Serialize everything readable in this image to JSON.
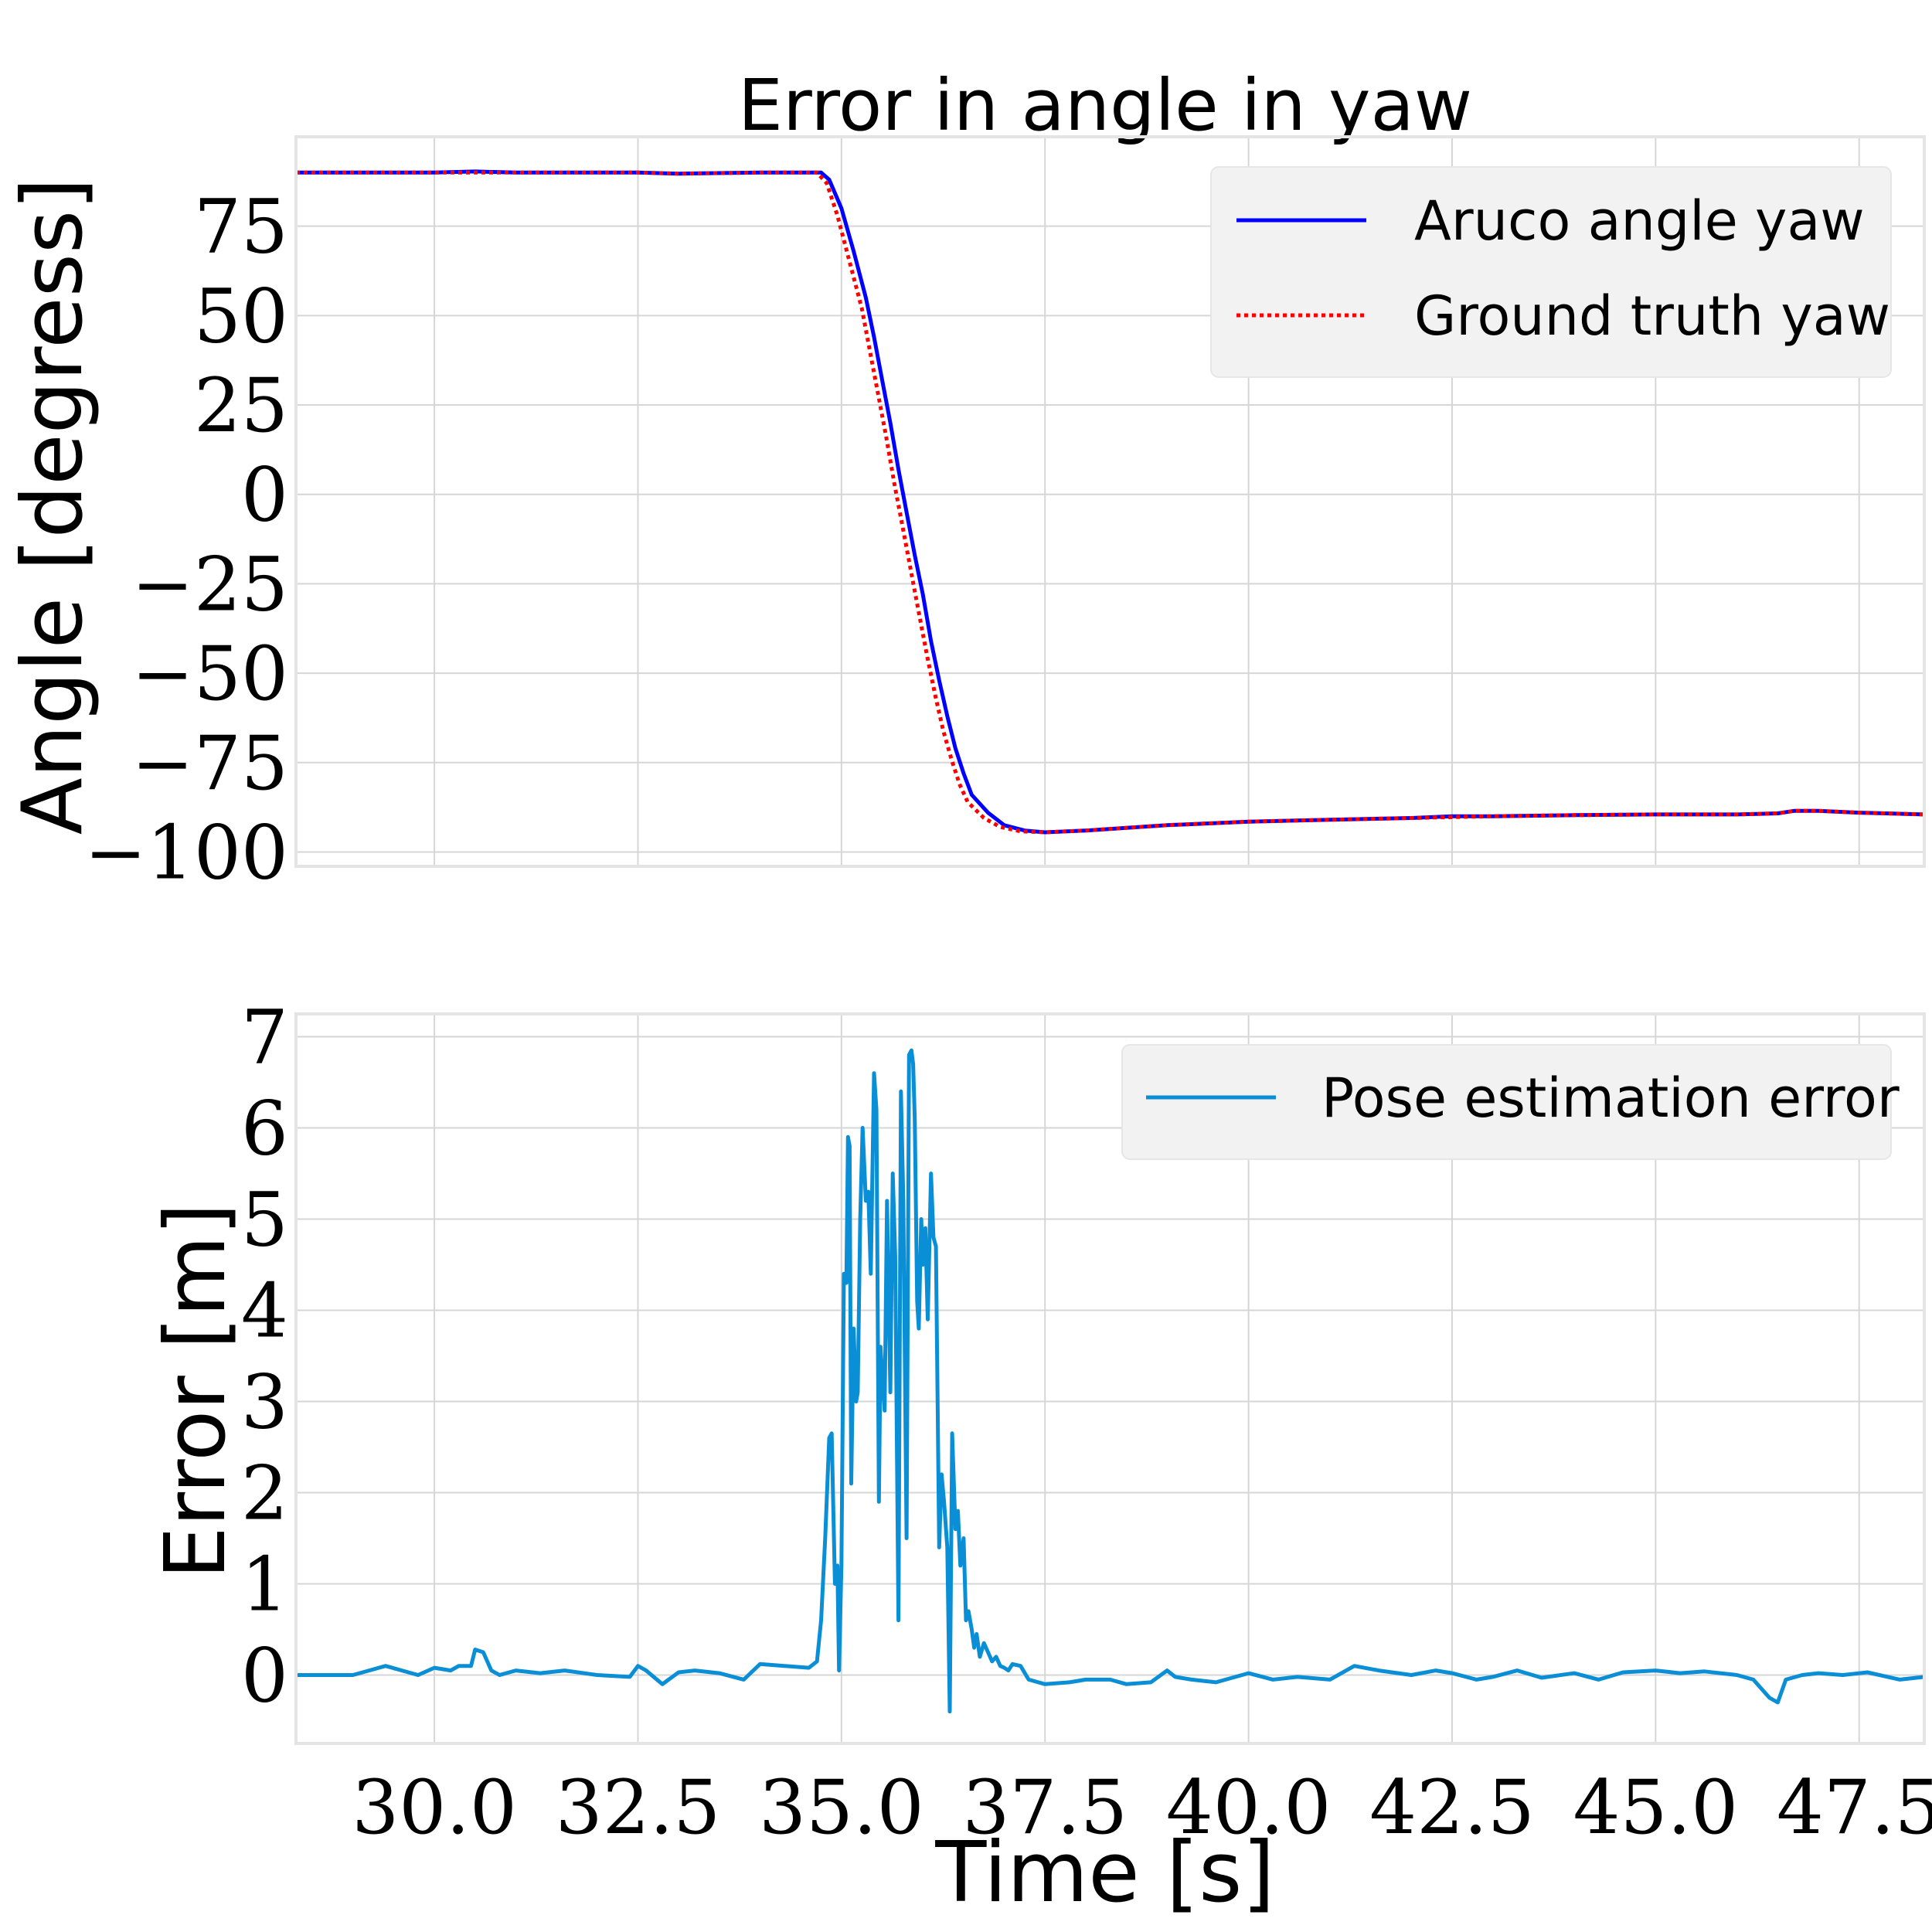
{
  "figure": {
    "title": "Error in angle in yaw",
    "xlabel": "Time [s]"
  },
  "chart_data": [
    {
      "type": "line",
      "title": "Error in angle in yaw",
      "xlabel": "",
      "ylabel": "Angle [degress]",
      "xlim": [
        28.3,
        48.3
      ],
      "ylim": [
        -104,
        100
      ],
      "xticks": [
        30.0,
        32.5,
        35.0,
        37.5,
        40.0,
        42.5,
        45.0,
        47.5
      ],
      "xtick_labels": [],
      "yticks": [
        75,
        50,
        25,
        0,
        -25,
        -50,
        -75,
        -100
      ],
      "ytick_labels": [
        "75",
        "50",
        "25",
        "0",
        "−25",
        "−50",
        "−75",
        "−100"
      ],
      "grid": true,
      "legend_position": "top-right",
      "series": [
        {
          "name": "Aruco angle yaw",
          "color": "#0000ff",
          "style": "solid",
          "x": [
            28.3,
            30.0,
            30.5,
            31.0,
            32.5,
            33.0,
            34.0,
            34.75,
            34.85,
            35.0,
            35.15,
            35.3,
            35.4,
            35.5,
            35.6,
            35.7,
            35.8,
            35.9,
            36.0,
            36.1,
            36.2,
            36.3,
            36.4,
            36.5,
            36.6,
            36.8,
            37.0,
            37.25,
            37.5,
            38.0,
            39.0,
            40.0,
            41.0,
            42.0,
            42.5,
            43.0,
            44.0,
            45.0,
            46.0,
            46.5,
            46.7,
            47.0,
            47.5,
            48.3
          ],
          "y": [
            90,
            90,
            90.3,
            90,
            90,
            89.7,
            90,
            90,
            88,
            80,
            68,
            55,
            44,
            32,
            20,
            7,
            -5,
            -17,
            -28,
            -41,
            -52,
            -62,
            -71,
            -78,
            -84,
            -89,
            -92.5,
            -94,
            -94.5,
            -94,
            -92.5,
            -91.5,
            -91,
            -90.5,
            -90,
            -90,
            -89.7,
            -89.5,
            -89.5,
            -89.2,
            -88.5,
            -88.5,
            -89,
            -89.5
          ]
        },
        {
          "name": "Ground truth yaw",
          "color": "#ff0000",
          "style": "dotted",
          "x": [
            28.3,
            30.0,
            31.0,
            32.5,
            33.0,
            34.0,
            34.7,
            34.82,
            34.95,
            35.1,
            35.25,
            35.35,
            35.45,
            35.55,
            35.65,
            35.75,
            35.85,
            35.95,
            36.05,
            36.15,
            36.25,
            36.35,
            36.45,
            36.55,
            36.75,
            36.95,
            37.2,
            37.5,
            38.0,
            39.0,
            40.0,
            41.0,
            42.0,
            43.0,
            44.0,
            45.0,
            46.0,
            46.5,
            46.7,
            47.0,
            47.5,
            48.3
          ],
          "y": [
            90,
            90,
            90,
            90,
            89.7,
            90,
            90,
            87,
            78,
            65,
            52,
            40,
            28,
            16,
            3,
            -9,
            -21,
            -33,
            -45,
            -56,
            -66,
            -74,
            -81,
            -86,
            -90.5,
            -93,
            -94.2,
            -94.5,
            -94,
            -92.5,
            -91.5,
            -91,
            -90.5,
            -90,
            -89.7,
            -89.5,
            -89.5,
            -89.2,
            -88.5,
            -88.5,
            -89,
            -89.5
          ]
        }
      ]
    },
    {
      "type": "line",
      "title": "",
      "xlabel": "Time [s]",
      "ylabel": "Error [m]",
      "xlim": [
        28.3,
        48.3
      ],
      "ylim": [
        -0.75,
        7.25
      ],
      "xticks": [
        30.0,
        32.5,
        35.0,
        37.5,
        40.0,
        42.5,
        45.0,
        47.5
      ],
      "xtick_labels": [
        "30.0",
        "32.5",
        "35.0",
        "37.5",
        "40.0",
        "42.5",
        "45.0",
        "47.5"
      ],
      "yticks": [
        0,
        1,
        2,
        3,
        4,
        5,
        6,
        7
      ],
      "ytick_labels": [
        "0",
        "1",
        "2",
        "3",
        "4",
        "5",
        "6",
        "7"
      ],
      "grid": true,
      "legend_position": "top-right",
      "series": [
        {
          "name": "Pose estimation error",
          "color": "#0a8fd6",
          "style": "solid",
          "x": [
            28.3,
            28.6,
            29.0,
            29.2,
            29.4,
            29.6,
            29.8,
            30.0,
            30.2,
            30.3,
            30.45,
            30.5,
            30.6,
            30.7,
            30.8,
            31.0,
            31.3,
            31.6,
            32.0,
            32.4,
            32.5,
            32.6,
            32.8,
            33.0,
            33.2,
            33.5,
            33.8,
            34.0,
            34.3,
            34.6,
            34.7,
            34.75,
            34.8,
            34.85,
            34.88,
            34.92,
            34.95,
            34.97,
            35.0,
            35.03,
            35.06,
            35.08,
            35.1,
            35.12,
            35.15,
            35.18,
            35.2,
            35.23,
            35.26,
            35.3,
            35.33,
            35.36,
            35.4,
            35.43,
            35.46,
            35.48,
            35.5,
            35.53,
            35.56,
            35.6,
            35.63,
            35.66,
            35.7,
            35.73,
            35.76,
            35.8,
            35.83,
            35.86,
            35.88,
            35.9,
            35.93,
            35.95,
            35.98,
            36.0,
            36.03,
            36.06,
            36.1,
            36.13,
            36.16,
            36.2,
            36.23,
            36.26,
            36.3,
            36.33,
            36.36,
            36.4,
            36.43,
            36.46,
            36.5,
            36.53,
            36.56,
            36.6,
            36.63,
            36.66,
            36.7,
            36.75,
            36.8,
            36.85,
            36.9,
            36.95,
            37.0,
            37.05,
            37.1,
            37.2,
            37.3,
            37.5,
            37.8,
            38.0,
            38.3,
            38.5,
            38.8,
            39.0,
            39.1,
            39.3,
            39.6,
            40.0,
            40.3,
            40.6,
            41.0,
            41.3,
            41.6,
            42.0,
            42.3,
            42.5,
            42.8,
            43.0,
            43.3,
            43.6,
            44.0,
            44.3,
            44.6,
            45.0,
            45.3,
            45.6,
            46.0,
            46.2,
            46.4,
            46.5,
            46.6,
            46.8,
            47.0,
            47.3,
            47.6,
            48.0,
            48.3
          ],
          "y": [
            0.0,
            0.0,
            0.0,
            0.05,
            0.1,
            0.05,
            0.0,
            0.08,
            0.05,
            0.1,
            0.1,
            0.28,
            0.25,
            0.05,
            0.0,
            0.05,
            0.02,
            0.05,
            0.0,
            -0.02,
            0.1,
            0.05,
            -0.1,
            0.03,
            0.05,
            0.02,
            -0.05,
            0.12,
            0.1,
            0.08,
            0.15,
            0.6,
            1.5,
            2.6,
            2.65,
            1.0,
            1.2,
            0.05,
            1.2,
            4.4,
            4.3,
            5.9,
            5.8,
            2.1,
            3.8,
            3.0,
            3.1,
            5.0,
            6.0,
            5.2,
            5.3,
            4.4,
            6.6,
            6.2,
            1.9,
            3.6,
            3.3,
            2.9,
            5.2,
            3.1,
            5.5,
            4.6,
            0.6,
            6.4,
            5.2,
            1.5,
            6.8,
            6.85,
            6.7,
            6.1,
            4.1,
            3.8,
            5.0,
            4.5,
            4.9,
            3.9,
            5.5,
            4.8,
            4.7,
            1.4,
            2.2,
            1.9,
            1.4,
            -0.4,
            2.65,
            1.6,
            1.8,
            1.2,
            1.5,
            0.6,
            0.7,
            0.5,
            0.3,
            0.45,
            0.2,
            0.35,
            0.25,
            0.15,
            0.2,
            0.1,
            0.08,
            0.05,
            0.12,
            0.1,
            -0.05,
            -0.1,
            -0.08,
            -0.05,
            -0.05,
            -0.1,
            -0.08,
            0.05,
            -0.02,
            -0.05,
            -0.08,
            0.02,
            -0.05,
            -0.02,
            -0.05,
            0.1,
            0.05,
            0.0,
            0.05,
            0.02,
            -0.05,
            -0.02,
            0.05,
            -0.03,
            0.02,
            -0.05,
            0.03,
            0.05,
            0.02,
            0.04,
            0.0,
            -0.05,
            -0.25,
            -0.3,
            -0.05,
            0.0,
            0.02,
            0.0,
            0.03,
            -0.05,
            -0.02
          ]
        }
      ]
    }
  ]
}
